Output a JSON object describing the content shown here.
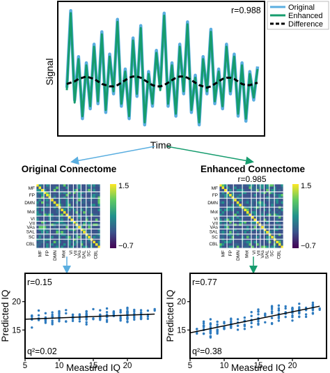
{
  "signal_panel": {
    "ylabel": "Signal",
    "xlabel": "Time",
    "correlation": "r=0.988",
    "legend": [
      {
        "label": "Original",
        "color": "#5aaee0",
        "style": "solid"
      },
      {
        "label": "Enhanced",
        "color": "#169c6e",
        "style": "solid"
      },
      {
        "label": "Difference",
        "color": "#000000",
        "style": "dashed"
      }
    ]
  },
  "connectomes": {
    "original_title": "Original Connectome",
    "enhanced_title": "Enhanced Connectome",
    "between_correlation": "r=0.985",
    "networks": [
      "MF",
      "FP",
      "DMN",
      "Mot",
      "VI",
      "VII",
      "VAs",
      "SAL",
      "SC",
      "CBL"
    ],
    "colorbar_max": "1.5",
    "colorbar_min": "−0.7",
    "colormap": [
      "#440154",
      "#3b528b",
      "#21918c",
      "#5ec962",
      "#fde725"
    ]
  },
  "arrows": {
    "original_color": "#5aaee0",
    "enhanced_color": "#169c6e"
  },
  "chart_data": [
    {
      "type": "line",
      "title": "",
      "xlabel": "Time",
      "ylabel": "Signal",
      "series": [
        {
          "name": "Original",
          "values": [
            0.35,
            0.97,
            0.25,
            0.6,
            0.1,
            0.55,
            0.18,
            0.7,
            0.22,
            0.8,
            0.15,
            0.62,
            0.3,
            0.9,
            0.2,
            0.5,
            0.1,
            0.75,
            0.28,
            0.85,
            0.05,
            0.48,
            0.2,
            0.65,
            0.35,
            0.95,
            0.2,
            0.55,
            0.12,
            0.7,
            0.3,
            0.88,
            0.15,
            0.45,
            0.05,
            0.6,
            0.3,
            0.82,
            0.22,
            0.5,
            0.18,
            0.7,
            0.3,
            0.62,
            0.12,
            0.55,
            0.08,
            0.48,
            0.25,
            0.52
          ]
        },
        {
          "name": "Enhanced",
          "values": [
            0.33,
            0.95,
            0.23,
            0.58,
            0.12,
            0.53,
            0.2,
            0.68,
            0.24,
            0.78,
            0.17,
            0.6,
            0.32,
            0.88,
            0.22,
            0.48,
            0.12,
            0.73,
            0.3,
            0.83,
            0.07,
            0.46,
            0.22,
            0.63,
            0.33,
            0.93,
            0.22,
            0.53,
            0.14,
            0.68,
            0.32,
            0.86,
            0.17,
            0.43,
            0.07,
            0.58,
            0.32,
            0.8,
            0.24,
            0.48,
            0.2,
            0.68,
            0.32,
            0.6,
            0.14,
            0.53,
            0.1,
            0.46,
            0.27,
            0.5
          ]
        },
        {
          "name": "Difference",
          "values": [
            0.38,
            0.39,
            0.4,
            0.42,
            0.43,
            0.44,
            0.43,
            0.42,
            0.4,
            0.38,
            0.37,
            0.36,
            0.36,
            0.37,
            0.39,
            0.41,
            0.43,
            0.44,
            0.44,
            0.43,
            0.41,
            0.39,
            0.37,
            0.36,
            0.36,
            0.37,
            0.39,
            0.41,
            0.43,
            0.44,
            0.44,
            0.43,
            0.41,
            0.39,
            0.37,
            0.36,
            0.35,
            0.36,
            0.38,
            0.4,
            0.42,
            0.43,
            0.43,
            0.42,
            0.4,
            0.38,
            0.37,
            0.37,
            0.38,
            0.39
          ]
        }
      ],
      "ylim": [
        0,
        1
      ]
    },
    {
      "type": "scatter",
      "xlabel": "Measured IQ",
      "ylabel": "Predicted IQ",
      "xlim": [
        5,
        25
      ],
      "ylim": [
        10,
        25
      ],
      "xticks": [
        5,
        10,
        15,
        20
      ],
      "yticks": [
        15,
        20
      ],
      "annotations": [
        "r=0.15",
        "q²=0.02"
      ],
      "fit_line": {
        "x": [
          5,
          24
        ],
        "y": [
          16.9,
          17.8
        ]
      },
      "points": {
        "x_range": [
          6,
          24
        ],
        "y_center_intercept": 16.9,
        "y_center_slope": 0.047,
        "y_spread": 1.2,
        "count": 160
      }
    },
    {
      "type": "scatter",
      "xlabel": "Measured IQ",
      "ylabel": "Predicted IQ",
      "xlim": [
        5,
        25
      ],
      "ylim": [
        10,
        25
      ],
      "xticks": [
        5,
        10,
        15,
        20
      ],
      "yticks": [
        15,
        20
      ],
      "annotations": [
        "r=0.77",
        "q²=0.38"
      ],
      "fit_line": {
        "x": [
          5,
          24
        ],
        "y": [
          14.5,
          19.2
        ]
      },
      "points": {
        "x_range": [
          6,
          24
        ],
        "y_center_intercept": 14.5,
        "y_center_slope": 0.25,
        "y_spread": 1.4,
        "count": 160
      }
    }
  ]
}
